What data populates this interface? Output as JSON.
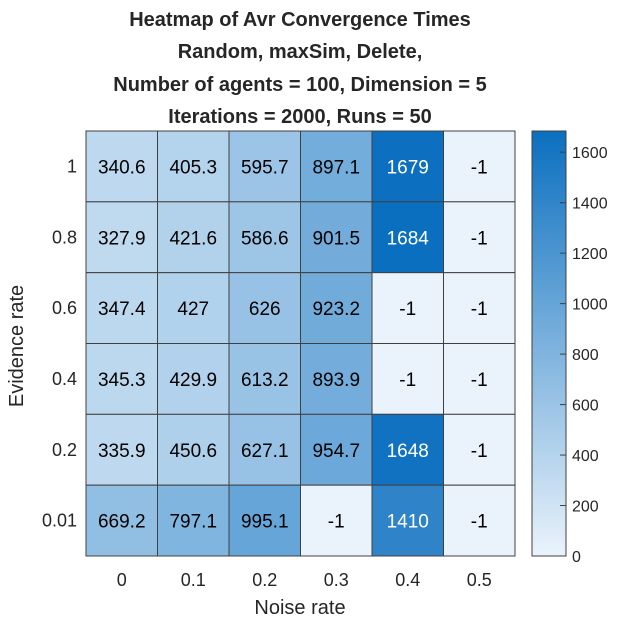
{
  "chart_data": {
    "type": "heatmap",
    "title_lines": [
      "Heatmap of Avr Convergence Times",
      "Random, maxSim, Delete,",
      "Number of agents = 100, Dimension = 5",
      "Iterations = 2000, Runs = 50"
    ],
    "xlabel": "Noise rate",
    "ylabel": "Evidence rate",
    "x_categories": [
      "0",
      "0.1",
      "0.2",
      "0.3",
      "0.4",
      "0.5"
    ],
    "y_categories": [
      "1",
      "0.8",
      "0.6",
      "0.4",
      "0.2",
      "0.01"
    ],
    "values": [
      [
        340.6,
        405.3,
        595.7,
        897.1,
        1679,
        -1
      ],
      [
        327.9,
        421.6,
        586.6,
        901.5,
        1684,
        -1
      ],
      [
        347.4,
        427,
        626,
        923.2,
        -1,
        -1
      ],
      [
        345.3,
        429.9,
        613.2,
        893.9,
        -1,
        -1
      ],
      [
        335.9,
        450.6,
        627.1,
        954.7,
        1648,
        -1
      ],
      [
        669.2,
        797.1,
        995.1,
        -1,
        1410,
        -1
      ]
    ],
    "colorbar": {
      "min": 0,
      "max": 1684,
      "ticks": [
        0,
        200,
        400,
        600,
        800,
        1000,
        1200,
        1400,
        1600
      ],
      "color_low": "#eaf3fb",
      "color_high": "#0b6fbf"
    },
    "cell_label_light_threshold": 1100,
    "label_color_dark": "#000000",
    "label_color_light": "#ffffff",
    "grid_color": "#404040"
  }
}
